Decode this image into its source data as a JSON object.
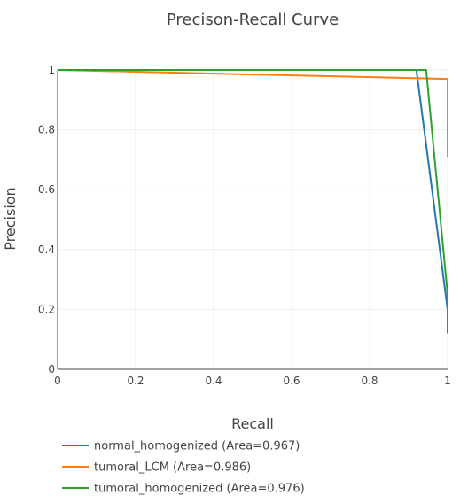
{
  "chart_data": {
    "type": "line",
    "title": "Precison-Recall Curve",
    "xlabel": "Recall",
    "ylabel": "Precision",
    "xlim": [
      0,
      1
    ],
    "ylim": [
      0,
      1
    ],
    "xticks": [
      "0",
      "0.2",
      "0.4",
      "0.6",
      "0.8",
      "1"
    ],
    "yticks": [
      "0",
      "0.2",
      "0.4",
      "0.6",
      "0.8",
      "1"
    ],
    "xtick_values": [
      0,
      0.2,
      0.4,
      0.6,
      0.8,
      1
    ],
    "ytick_values": [
      0,
      0.2,
      0.4,
      0.6,
      0.8,
      1
    ],
    "grid": true,
    "legend_position": "bottom-left",
    "series": [
      {
        "name": "normal_homogenized (Area=0.967)",
        "color": "#1f77b4",
        "x": [
          0,
          0.92,
          1.0,
          1.0
        ],
        "y": [
          1.0,
          1.0,
          0.2,
          0.19
        ]
      },
      {
        "name": "tumoral_LCM (Area=0.986)",
        "color": "#ff7f0e",
        "x": [
          0,
          0.5,
          1.0,
          1.0
        ],
        "y": [
          1.0,
          0.985,
          0.97,
          0.71
        ]
      },
      {
        "name": "tumoral_homogenized (Area=0.976)",
        "color": "#2ca02c",
        "x": [
          0,
          0.945,
          1.0,
          1.0
        ],
        "y": [
          1.0,
          1.0,
          0.25,
          0.12
        ]
      }
    ]
  }
}
